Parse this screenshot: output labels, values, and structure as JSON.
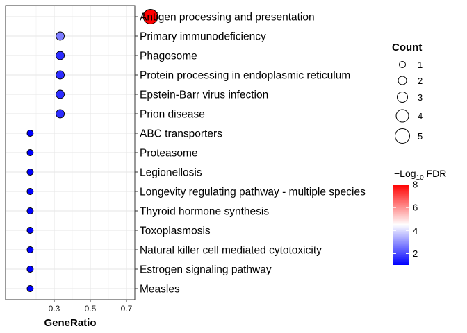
{
  "chart_data": {
    "type": "scatter",
    "xlabel": "GeneRatio",
    "x_ticks": [
      "0.3",
      "0.5",
      "0.7"
    ],
    "x_tick_values": [
      0.3,
      0.5,
      0.7
    ],
    "xlim": [
      0.15,
      0.85
    ],
    "grid": true,
    "terms": [
      "Antigen processing and presentation",
      "Primary immunodeficiency",
      "Phagosome",
      "Protein processing in endoplasmic reticulum",
      "Epstein-Barr virus infection",
      "Prion disease",
      "ABC transporters",
      "Proteasome",
      "Legionellosis",
      "Longevity regulating pathway - multiple species",
      "Thyroid hormone synthesis",
      "Toxoplasmosis",
      "Natural killer cell mediated cytotoxicity",
      "Estrogen signaling pathway",
      "Measles"
    ],
    "gene_ratio": [
      0.833,
      0.333,
      0.333,
      0.333,
      0.333,
      0.333,
      0.167,
      0.167,
      0.167,
      0.167,
      0.167,
      0.167,
      0.167,
      0.167,
      0.167
    ],
    "count": [
      5,
      2,
      2,
      2,
      2,
      2,
      1,
      1,
      1,
      1,
      1,
      1,
      1,
      1,
      1
    ],
    "neg_log10_fdr": [
      8.0,
      2.7,
      1.6,
      1.6,
      1.6,
      1.6,
      1.0,
      1.0,
      1.0,
      1.0,
      1.0,
      1.0,
      1.0,
      1.0,
      1.0
    ],
    "size_legend": {
      "title": "Count",
      "values": [
        1,
        2,
        3,
        4,
        5
      ],
      "labels": [
        "1",
        "2",
        "3",
        "4",
        "5"
      ]
    },
    "color_legend": {
      "title_prefix": "−Log",
      "title_sub": "10",
      "title_suffix": " FDR",
      "ticks": [
        8,
        6,
        4,
        2
      ],
      "tick_labels": [
        "8",
        "6",
        "4",
        "2"
      ],
      "range": [
        1.0,
        8.0
      ],
      "colors": {
        "low": "#0000ff",
        "mid": "#ffffff",
        "high": "#ff0000",
        "midpoint": 4.5
      }
    },
    "legend_position": "right"
  }
}
